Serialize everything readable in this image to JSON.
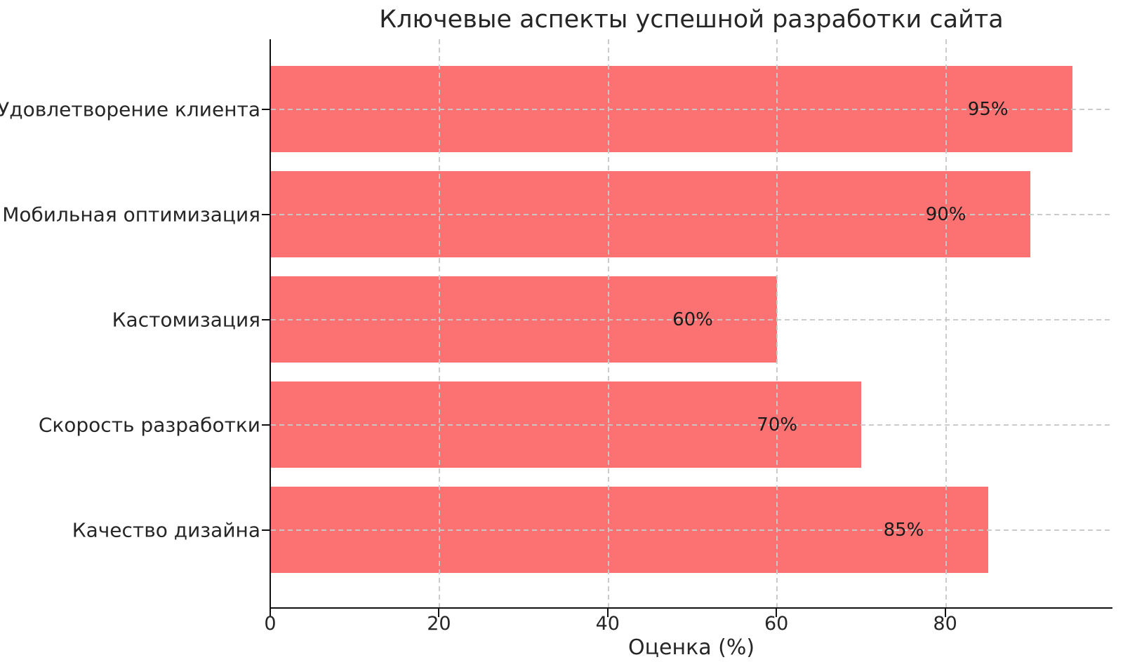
{
  "chart_data": {
    "type": "bar",
    "orientation": "horizontal",
    "title": "Ключевые аспекты успешной разработки сайта",
    "xlabel": "Оценка (%)",
    "ylabel": "",
    "categories": [
      "Удовлетворение клиента",
      "Мобильная оптимизация",
      "Кастомизация",
      "Скорость разработки",
      "Качество дизайна"
    ],
    "values": [
      95,
      90,
      60,
      70,
      85
    ],
    "bar_labels": [
      "95%",
      "90%",
      "60%",
      "70%",
      "85%"
    ],
    "xticks": [
      0,
      20,
      40,
      60,
      80
    ],
    "xlim": [
      0,
      99.75
    ],
    "legend": "none",
    "grid": "dashed gridlines on both axes, drawn over bars",
    "colors": {
      "bar": "#fc7272",
      "grid": "#c9c9c9",
      "text": "#262626",
      "spine": "#111111",
      "background": "#ffffff"
    }
  }
}
